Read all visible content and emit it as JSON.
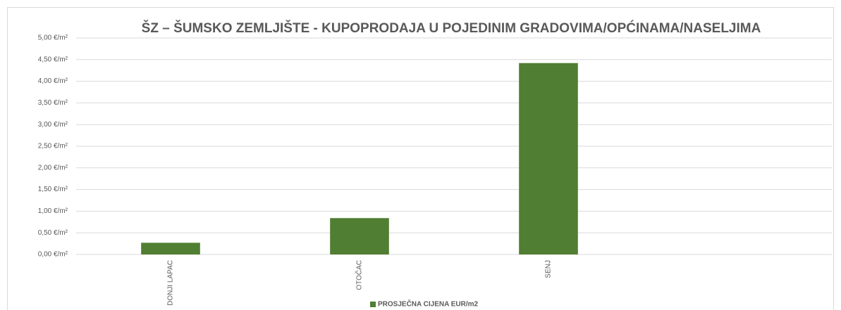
{
  "chart_data": {
    "type": "bar",
    "title": "ŠZ – ŠUMSKO ZEMLJIŠTE - KUPOPRODAJA  U POJEDINIM GRADOVIMA/OPĆINAMA/NASELJIMA",
    "categories": [
      "DONJI LAPAC",
      "OTOČAC",
      "SENJ",
      null
    ],
    "series": [
      {
        "name": "PROSJEČNA CIJENA EUR/m2",
        "color": "#507e32",
        "values": [
          0.27,
          0.84,
          4.42,
          null
        ]
      }
    ],
    "ylim": [
      0,
      5
    ],
    "yticks": [
      {
        "value": 0,
        "label": "0,00 €/m²"
      },
      {
        "value": 0.5,
        "label": "0,50 €/m²"
      },
      {
        "value": 1,
        "label": "1,00 €/m²"
      },
      {
        "value": 1.5,
        "label": "1,50 €/m²"
      },
      {
        "value": 2,
        "label": "2,00 €/m²"
      },
      {
        "value": 2.5,
        "label": "2,50 €/m²"
      },
      {
        "value": 3,
        "label": "3,00 €/m²"
      },
      {
        "value": 3.5,
        "label": "3,50 €/m²"
      },
      {
        "value": 4,
        "label": "4,00 €/m²"
      },
      {
        "value": 4.5,
        "label": "4,50 €/m²"
      },
      {
        "value": 5,
        "label": "5,00 €/m²"
      }
    ],
    "grid": true,
    "legend": "bottom"
  }
}
